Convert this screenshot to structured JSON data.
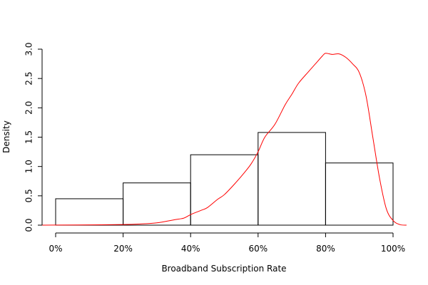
{
  "chart_data": {
    "type": "bar",
    "subtype": "histogram-with-density",
    "title": "",
    "xlabel": "Broadband Subscription Rate",
    "ylabel": "Density",
    "xlim": [
      0,
      1
    ],
    "ylim": [
      0,
      3.0
    ],
    "x_ticks": [
      0,
      0.2,
      0.4,
      0.6,
      0.8,
      1.0
    ],
    "x_tick_labels": [
      "0%",
      "20%",
      "40%",
      "60%",
      "80%",
      "100%"
    ],
    "y_ticks": [
      0,
      0.5,
      1.0,
      1.5,
      2.0,
      2.5,
      3.0
    ],
    "y_tick_labels": [
      "0.0",
      "0.5",
      "1.0",
      "1.5",
      "2.0",
      "2.5",
      "3.0"
    ],
    "grid": false,
    "bins": [
      {
        "start": 0.0,
        "end": 0.2,
        "value": 0.45
      },
      {
        "start": 0.2,
        "end": 0.4,
        "value": 0.72
      },
      {
        "start": 0.4,
        "end": 0.6,
        "value": 1.2
      },
      {
        "start": 0.6,
        "end": 0.8,
        "value": 1.58
      },
      {
        "start": 0.8,
        "end": 1.0,
        "value": 1.06
      }
    ],
    "density_curve": {
      "color": "#ff0000",
      "points": [
        [
          -0.04,
          0.0
        ],
        [
          0.0,
          0.002
        ],
        [
          0.1,
          0.004
        ],
        [
          0.2,
          0.01
        ],
        [
          0.25,
          0.02
        ],
        [
          0.3,
          0.04
        ],
        [
          0.35,
          0.09
        ],
        [
          0.38,
          0.12
        ],
        [
          0.4,
          0.18
        ],
        [
          0.43,
          0.25
        ],
        [
          0.45,
          0.3
        ],
        [
          0.48,
          0.44
        ],
        [
          0.5,
          0.52
        ],
        [
          0.53,
          0.7
        ],
        [
          0.56,
          0.9
        ],
        [
          0.58,
          1.05
        ],
        [
          0.6,
          1.25
        ],
        [
          0.62,
          1.5
        ],
        [
          0.65,
          1.72
        ],
        [
          0.68,
          2.05
        ],
        [
          0.7,
          2.23
        ],
        [
          0.72,
          2.42
        ],
        [
          0.75,
          2.62
        ],
        [
          0.77,
          2.75
        ],
        [
          0.79,
          2.88
        ],
        [
          0.8,
          2.93
        ],
        [
          0.82,
          2.91
        ],
        [
          0.84,
          2.92
        ],
        [
          0.86,
          2.86
        ],
        [
          0.88,
          2.75
        ],
        [
          0.9,
          2.6
        ],
        [
          0.92,
          2.2
        ],
        [
          0.94,
          1.5
        ],
        [
          0.96,
          0.8
        ],
        [
          0.98,
          0.28
        ],
        [
          1.0,
          0.08
        ],
        [
          1.02,
          0.01
        ],
        [
          1.04,
          0.0
        ]
      ]
    }
  }
}
